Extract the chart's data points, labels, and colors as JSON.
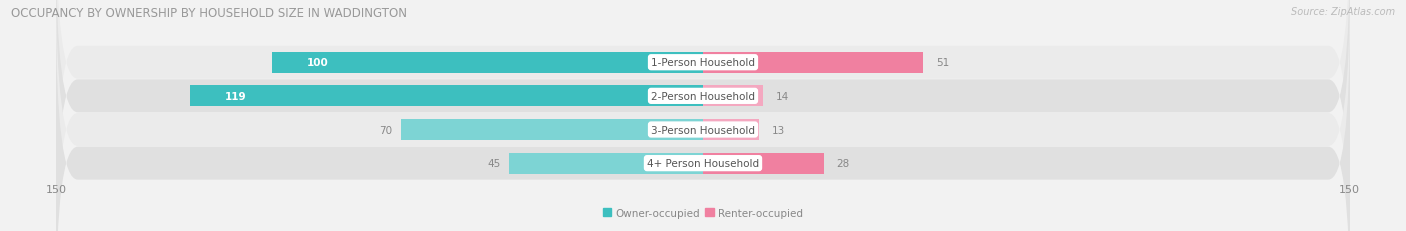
{
  "title": "OCCUPANCY BY OWNERSHIP BY HOUSEHOLD SIZE IN WADDINGTON",
  "source": "Source: ZipAtlas.com",
  "categories": [
    "1-Person Household",
    "2-Person Household",
    "3-Person Household",
    "4+ Person Household"
  ],
  "owner_values": [
    100,
    119,
    70,
    45
  ],
  "renter_values": [
    51,
    14,
    13,
    28
  ],
  "owner_color": "#3dbfbf",
  "renter_color": "#f080a0",
  "owner_color_light": "#7dd4d4",
  "renter_color_light": "#f4a8c0",
  "axis_max": 150,
  "bar_height": 0.62,
  "background_color": "#f2f2f2",
  "row_bg_light": "#ebebeb",
  "row_bg_dark": "#e0e0e0",
  "title_fontsize": 8.5,
  "source_fontsize": 7,
  "bar_label_fontsize": 7.5,
  "category_label_fontsize": 7.5,
  "axis_label_fontsize": 8
}
